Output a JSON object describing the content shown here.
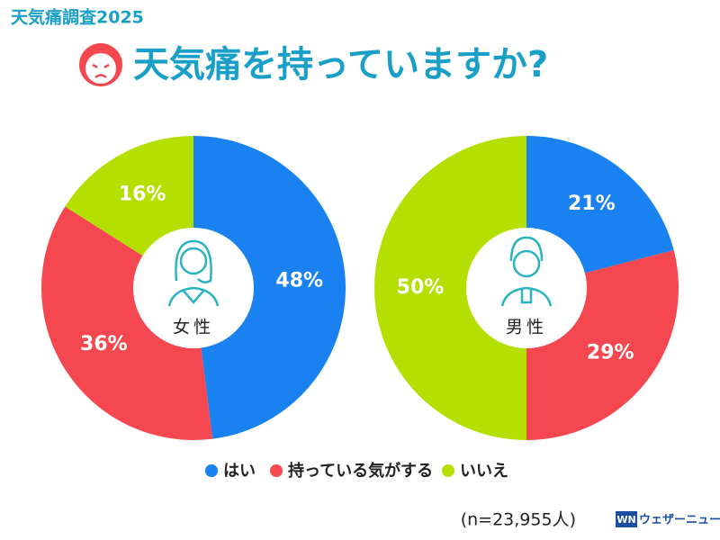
{
  "header": {
    "tag": "天気痛調査2025",
    "title": "天気痛を持っていますか?"
  },
  "chart_data": [
    {
      "type": "pie",
      "title": "女性",
      "categories": [
        "はい",
        "持っている気がする",
        "いいえ"
      ],
      "values": [
        48,
        36,
        16
      ],
      "value_labels": [
        "48%",
        "36%",
        "16%"
      ],
      "colors": [
        "#1a82f0",
        "#f5474f",
        "#b3e000"
      ]
    },
    {
      "type": "pie",
      "title": "男性",
      "categories": [
        "はい",
        "持っている気がする",
        "いいえ"
      ],
      "values": [
        21,
        29,
        50
      ],
      "value_labels": [
        "21%",
        "29%",
        "50%"
      ],
      "colors": [
        "#1a82f0",
        "#f5474f",
        "#b3e000"
      ]
    }
  ],
  "note": "(n=23,955人)",
  "brand": "ウェザーニュース"
}
